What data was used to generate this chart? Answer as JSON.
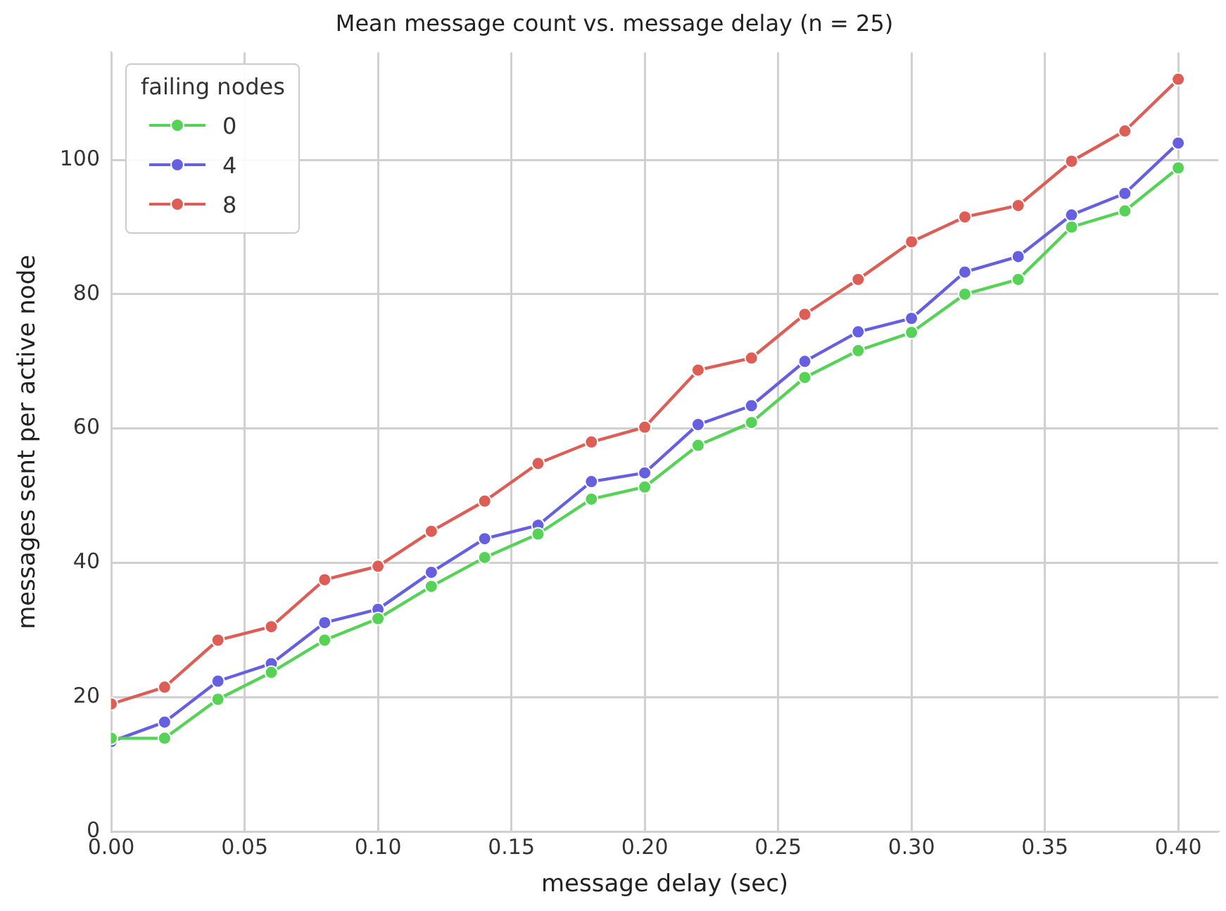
{
  "chart_data": {
    "type": "line",
    "title": "Mean message count vs. message delay (n = 25)",
    "xlabel": "message delay (sec)",
    "ylabel": "messages sent per active node",
    "legend_title": "failing nodes",
    "x": [
      0,
      0.02,
      0.04,
      0.06,
      0.08,
      0.1,
      0.12,
      0.14,
      0.16,
      0.18,
      0.2,
      0.22,
      0.24,
      0.26,
      0.28,
      0.3,
      0.32,
      0.34,
      0.36,
      0.38,
      0.4
    ],
    "series": [
      {
        "name": "0",
        "color": "#56d357",
        "values": [
          13.9,
          13.9,
          19.7,
          23.7,
          28.5,
          31.7,
          36.5,
          40.8,
          44.3,
          49.5,
          51.3,
          57.5,
          60.9,
          67.6,
          71.6,
          74.3,
          80,
          82.2,
          90,
          92.4,
          98.8
        ]
      },
      {
        "name": "4",
        "color": "#6660e0",
        "values": [
          13.4,
          16.3,
          22.4,
          25,
          31.1,
          33.1,
          38.6,
          43.6,
          45.6,
          52.1,
          53.4,
          60.6,
          63.4,
          70,
          74.4,
          76.4,
          83.3,
          85.6,
          91.8,
          95,
          102.5
        ]
      },
      {
        "name": "8",
        "color": "#dc5e56",
        "values": [
          19,
          21.5,
          28.5,
          30.5,
          37.5,
          39.5,
          44.7,
          49.2,
          54.8,
          58,
          60.2,
          68.7,
          70.5,
          77,
          82.2,
          87.8,
          91.5,
          93.2,
          99.8,
          104.3,
          112
        ]
      }
    ],
    "xlim": [
      0,
      0.415
    ],
    "xticks": [
      {
        "value": 0,
        "label": "0.00"
      },
      {
        "value": 0.05,
        "label": "0.05"
      },
      {
        "value": 0.1,
        "label": "0.10"
      },
      {
        "value": 0.15,
        "label": "0.15"
      },
      {
        "value": 0.2,
        "label": "0.20"
      },
      {
        "value": 0.25,
        "label": "0.25"
      },
      {
        "value": 0.3,
        "label": "0.30"
      },
      {
        "value": 0.35,
        "label": "0.35"
      },
      {
        "value": 0.4,
        "label": "0.40"
      }
    ],
    "ylim": [
      0,
      116
    ],
    "yticks": [
      0,
      20,
      40,
      60,
      80,
      100
    ],
    "grid": true,
    "legend": "top left",
    "marker": "circle",
    "line_style": "solid"
  }
}
